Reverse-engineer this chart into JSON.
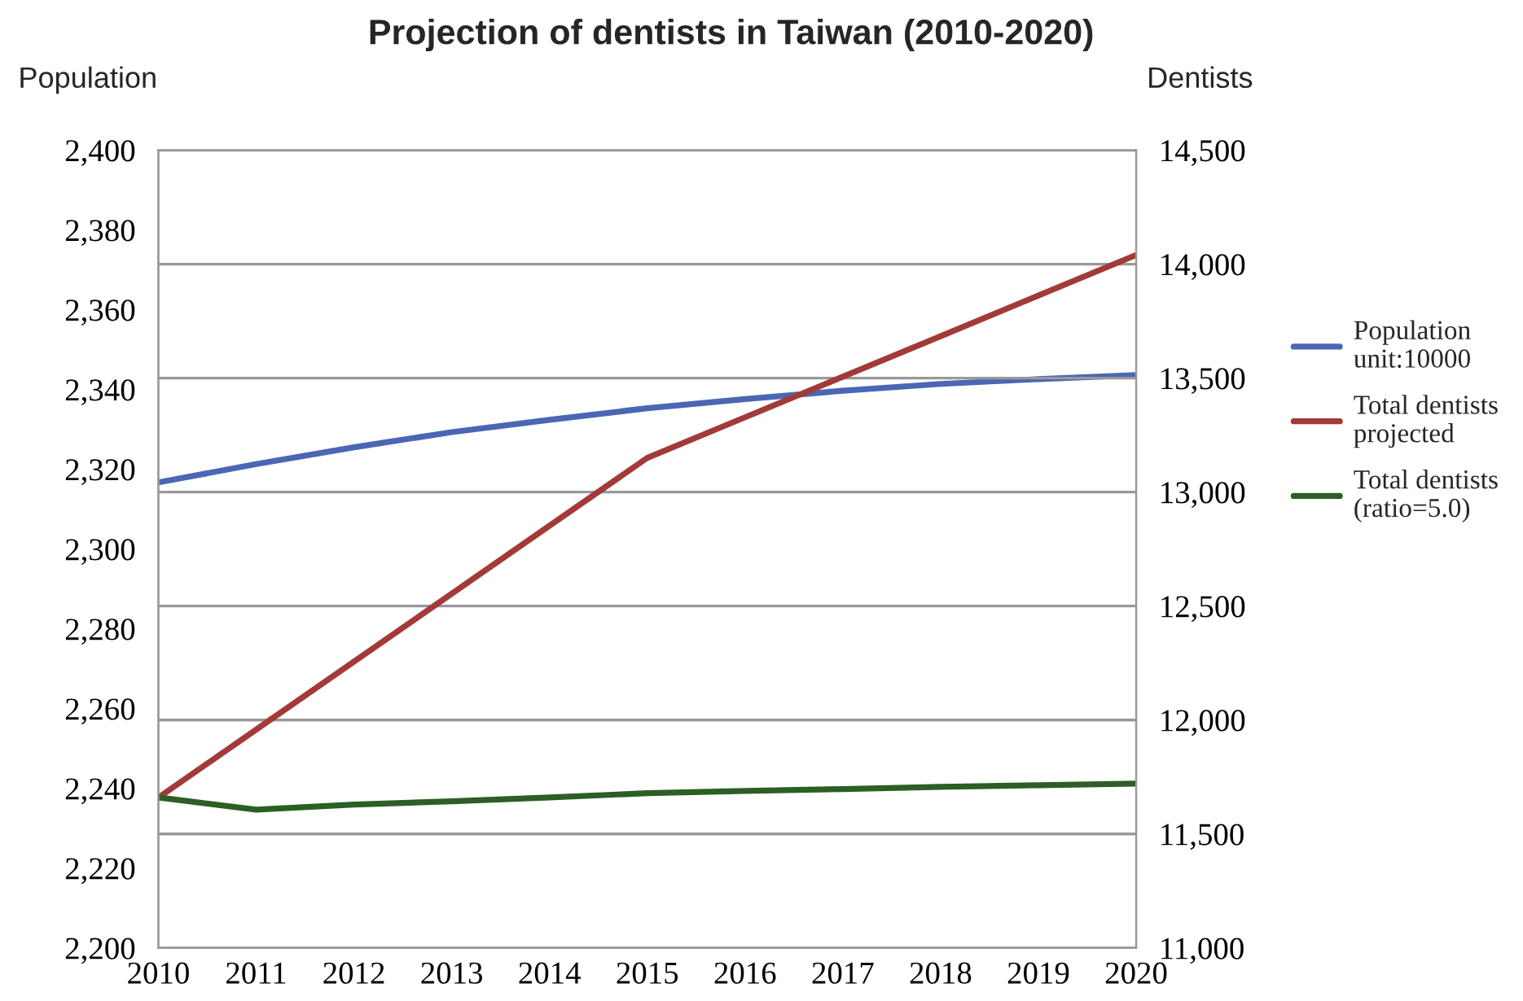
{
  "chart_data": {
    "type": "line",
    "title": "Projection of dentists in Taiwan (2010-2020)",
    "ylabel": "Population",
    "y2label": "Dentists",
    "x": [
      2010,
      2011,
      2012,
      2013,
      2014,
      2015,
      2016,
      2017,
      2018,
      2019,
      2020
    ],
    "series": [
      {
        "name": "Population\nunit:10000",
        "color": "#4a67b5",
        "values": [
          2316.7,
          2321.3,
          2325.5,
          2329.3,
          2332.4,
          2335.3,
          2337.6,
          2339.7,
          2341.4,
          2342.6,
          2343.6
        ]
      },
      {
        "name": "Total dentists\nprojected",
        "color": "#a33a38",
        "axis": "y2",
        "values": [
          11660,
          11958,
          12256,
          12554,
          12852,
          13150,
          13328,
          13506,
          13684,
          13862,
          14040
        ]
      },
      {
        "name": "Total dentists\n(ratio=5.0)",
        "color": "#2b5f24",
        "axis": "y2",
        "values": [
          11660,
          11607,
          11629,
          11643,
          11660,
          11679,
          11689,
          11697,
          11707,
          11714,
          11721
        ]
      }
    ],
    "xlim": [
      2010,
      2020
    ],
    "xticks": [
      2010,
      2011,
      2012,
      2013,
      2014,
      2015,
      2016,
      2017,
      2018,
      2019,
      2020
    ],
    "ylim": [
      2200,
      2400
    ],
    "yticks": [
      {
        "value": 2200,
        "label": "2,200"
      },
      {
        "value": 2220,
        "label": "2,220"
      },
      {
        "value": 2240,
        "label": "2,240"
      },
      {
        "value": 2260,
        "label": "2,260"
      },
      {
        "value": 2280,
        "label": "2,280"
      },
      {
        "value": 2300,
        "label": "2,300"
      },
      {
        "value": 2320,
        "label": "2,320"
      },
      {
        "value": 2340,
        "label": "2,340"
      },
      {
        "value": 2360,
        "label": "2,360"
      },
      {
        "value": 2380,
        "label": "2,380"
      },
      {
        "value": 2400,
        "label": "2,400"
      }
    ],
    "y2lim": [
      11000,
      14500
    ],
    "y2ticks": [
      {
        "value": 11000,
        "label": "11,000"
      },
      {
        "value": 11500,
        "label": "11,500"
      },
      {
        "value": 12000,
        "label": "12,000"
      },
      {
        "value": 12500,
        "label": "12,500"
      },
      {
        "value": 13000,
        "label": "13,000"
      },
      {
        "value": 13500,
        "label": "13,500"
      },
      {
        "value": 14000,
        "label": "14,000"
      },
      {
        "value": 14500,
        "label": "14,500"
      }
    ],
    "grid": "y",
    "legend": "right",
    "marker": "none",
    "line_style": "solid"
  }
}
